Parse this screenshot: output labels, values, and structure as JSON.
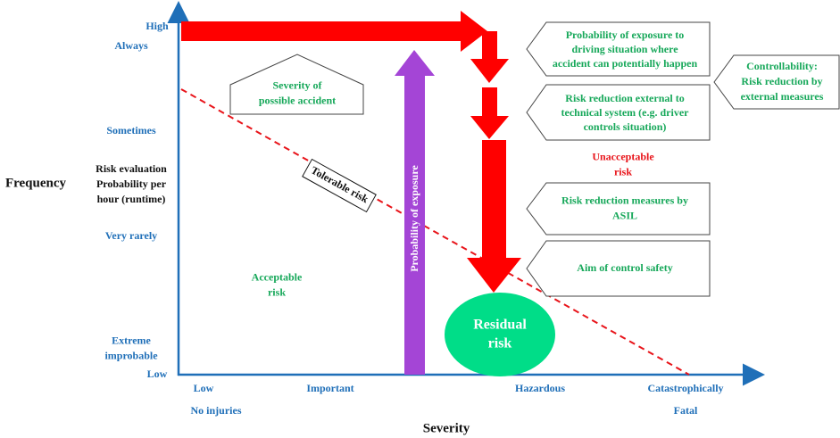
{
  "y_axis": {
    "title": "Frequency",
    "labels": {
      "high": "High",
      "always": "Always",
      "sometimes": "Sometimes",
      "risk_evaluation": [
        "Risk evaluation",
        "Probability per",
        "hour (runtime)"
      ],
      "very_rarely": "Very rarely",
      "extreme_improbable": [
        "Extreme",
        "improbable"
      ],
      "low": "Low"
    }
  },
  "x_axis": {
    "title": "Severity",
    "labels": {
      "low": "Low",
      "important": "Important",
      "hazardous": "Hazardous",
      "catastrophically": "Catastrophically",
      "no_injuries": "No injuries",
      "fatal": "Fatal"
    }
  },
  "regions": {
    "severity_of_accident": [
      "Severity of",
      "possible accident"
    ],
    "tolerable_risk": "Tolerable risk",
    "probability_of_exposure": "Probability of exposure",
    "acceptable_risk": [
      "Acceptable",
      "risk"
    ],
    "unacceptable_risk": [
      "Unacceptable",
      "risk"
    ],
    "residual_risk": [
      "Residual",
      "risk"
    ]
  },
  "callouts": {
    "exposure": [
      "Probability of exposure to",
      "driving situation where",
      "accident can potentially happen"
    ],
    "external_reduction": [
      "Risk reduction external to",
      "technical system (e.g. driver",
      "controls situation)"
    ],
    "asil": [
      "Risk reduction measures by",
      "ASIL"
    ],
    "aim": [
      "Aim of control safety"
    ],
    "controllability": [
      "Controllability:",
      "Risk reduction by",
      "external measures"
    ]
  }
}
